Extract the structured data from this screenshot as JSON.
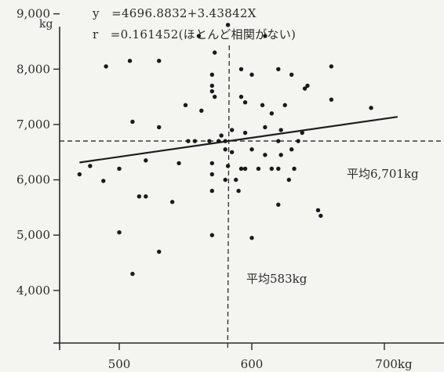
{
  "chart_data": {
    "type": "scatter",
    "equation_line1": "y　=4696.8832+3.43842X",
    "equation_line2": "r　=0.161452(ほとんど相関がない)",
    "ylabel": "kg",
    "y_ticks": [
      "9,000",
      "8,000",
      "7,000",
      "6,000",
      "5,000",
      "4,000"
    ],
    "y_tick_values": [
      9000,
      8000,
      7000,
      6000,
      5000,
      4000
    ],
    "x_ticks": [
      "500",
      "600",
      "700kg"
    ],
    "x_tick_values": [
      500,
      600,
      700
    ],
    "xlim": [
      455,
      745
    ],
    "ylim": [
      3050,
      9250
    ],
    "regression": {
      "intercept": 4696.8832,
      "slope": 3.43842,
      "x_range": [
        470,
        710
      ]
    },
    "mean_y": 6701,
    "mean_x": 583,
    "mean_y_label": "平均6,701kg",
    "mean_x_label": "平均583kg",
    "points": [
      [
        470,
        6100
      ],
      [
        478,
        6250
      ],
      [
        488,
        5980
      ],
      [
        490,
        8050
      ],
      [
        500,
        6200
      ],
      [
        500,
        5050
      ],
      [
        508,
        8150
      ],
      [
        510,
        7050
      ],
      [
        510,
        4300
      ],
      [
        515,
        5700
      ],
      [
        520,
        6350
      ],
      [
        520,
        5700
      ],
      [
        530,
        8150
      ],
      [
        530,
        6950
      ],
      [
        530,
        4700
      ],
      [
        540,
        5600
      ],
      [
        545,
        6300
      ],
      [
        550,
        7350
      ],
      [
        552,
        6700
      ],
      [
        557,
        6700
      ],
      [
        560,
        8600
      ],
      [
        562,
        7250
      ],
      [
        568,
        6700
      ],
      [
        570,
        7900
      ],
      [
        570,
        7700
      ],
      [
        570,
        7600
      ],
      [
        570,
        6300
      ],
      [
        570,
        6100
      ],
      [
        570,
        5800
      ],
      [
        570,
        5000
      ],
      [
        572,
        8300
      ],
      [
        572,
        7500
      ],
      [
        575,
        6700
      ],
      [
        577,
        6800
      ],
      [
        580,
        6700
      ],
      [
        580,
        6550
      ],
      [
        580,
        6000
      ],
      [
        582,
        8800
      ],
      [
        582,
        6250
      ],
      [
        585,
        6900
      ],
      [
        585,
        6500
      ],
      [
        588,
        6000
      ],
      [
        590,
        5800
      ],
      [
        592,
        8000
      ],
      [
        592,
        7500
      ],
      [
        592,
        6200
      ],
      [
        595,
        7400
      ],
      [
        595,
        6850
      ],
      [
        595,
        6200
      ],
      [
        600,
        6550
      ],
      [
        600,
        7900
      ],
      [
        600,
        4950
      ],
      [
        605,
        6200
      ],
      [
        608,
        7350
      ],
      [
        610,
        8600
      ],
      [
        610,
        6950
      ],
      [
        610,
        6450
      ],
      [
        615,
        6200
      ],
      [
        615,
        7200
      ],
      [
        620,
        8000
      ],
      [
        620,
        6700
      ],
      [
        620,
        6200
      ],
      [
        620,
        5550
      ],
      [
        622,
        6900
      ],
      [
        622,
        6450
      ],
      [
        625,
        7350
      ],
      [
        628,
        6000
      ],
      [
        630,
        7900
      ],
      [
        630,
        6550
      ],
      [
        632,
        6200
      ],
      [
        635,
        6700
      ],
      [
        638,
        6850
      ],
      [
        640,
        7650
      ],
      [
        642,
        7700
      ],
      [
        650,
        5450
      ],
      [
        652,
        5350
      ],
      [
        660,
        8050
      ],
      [
        660,
        7450
      ],
      [
        690,
        7300
      ]
    ]
  }
}
